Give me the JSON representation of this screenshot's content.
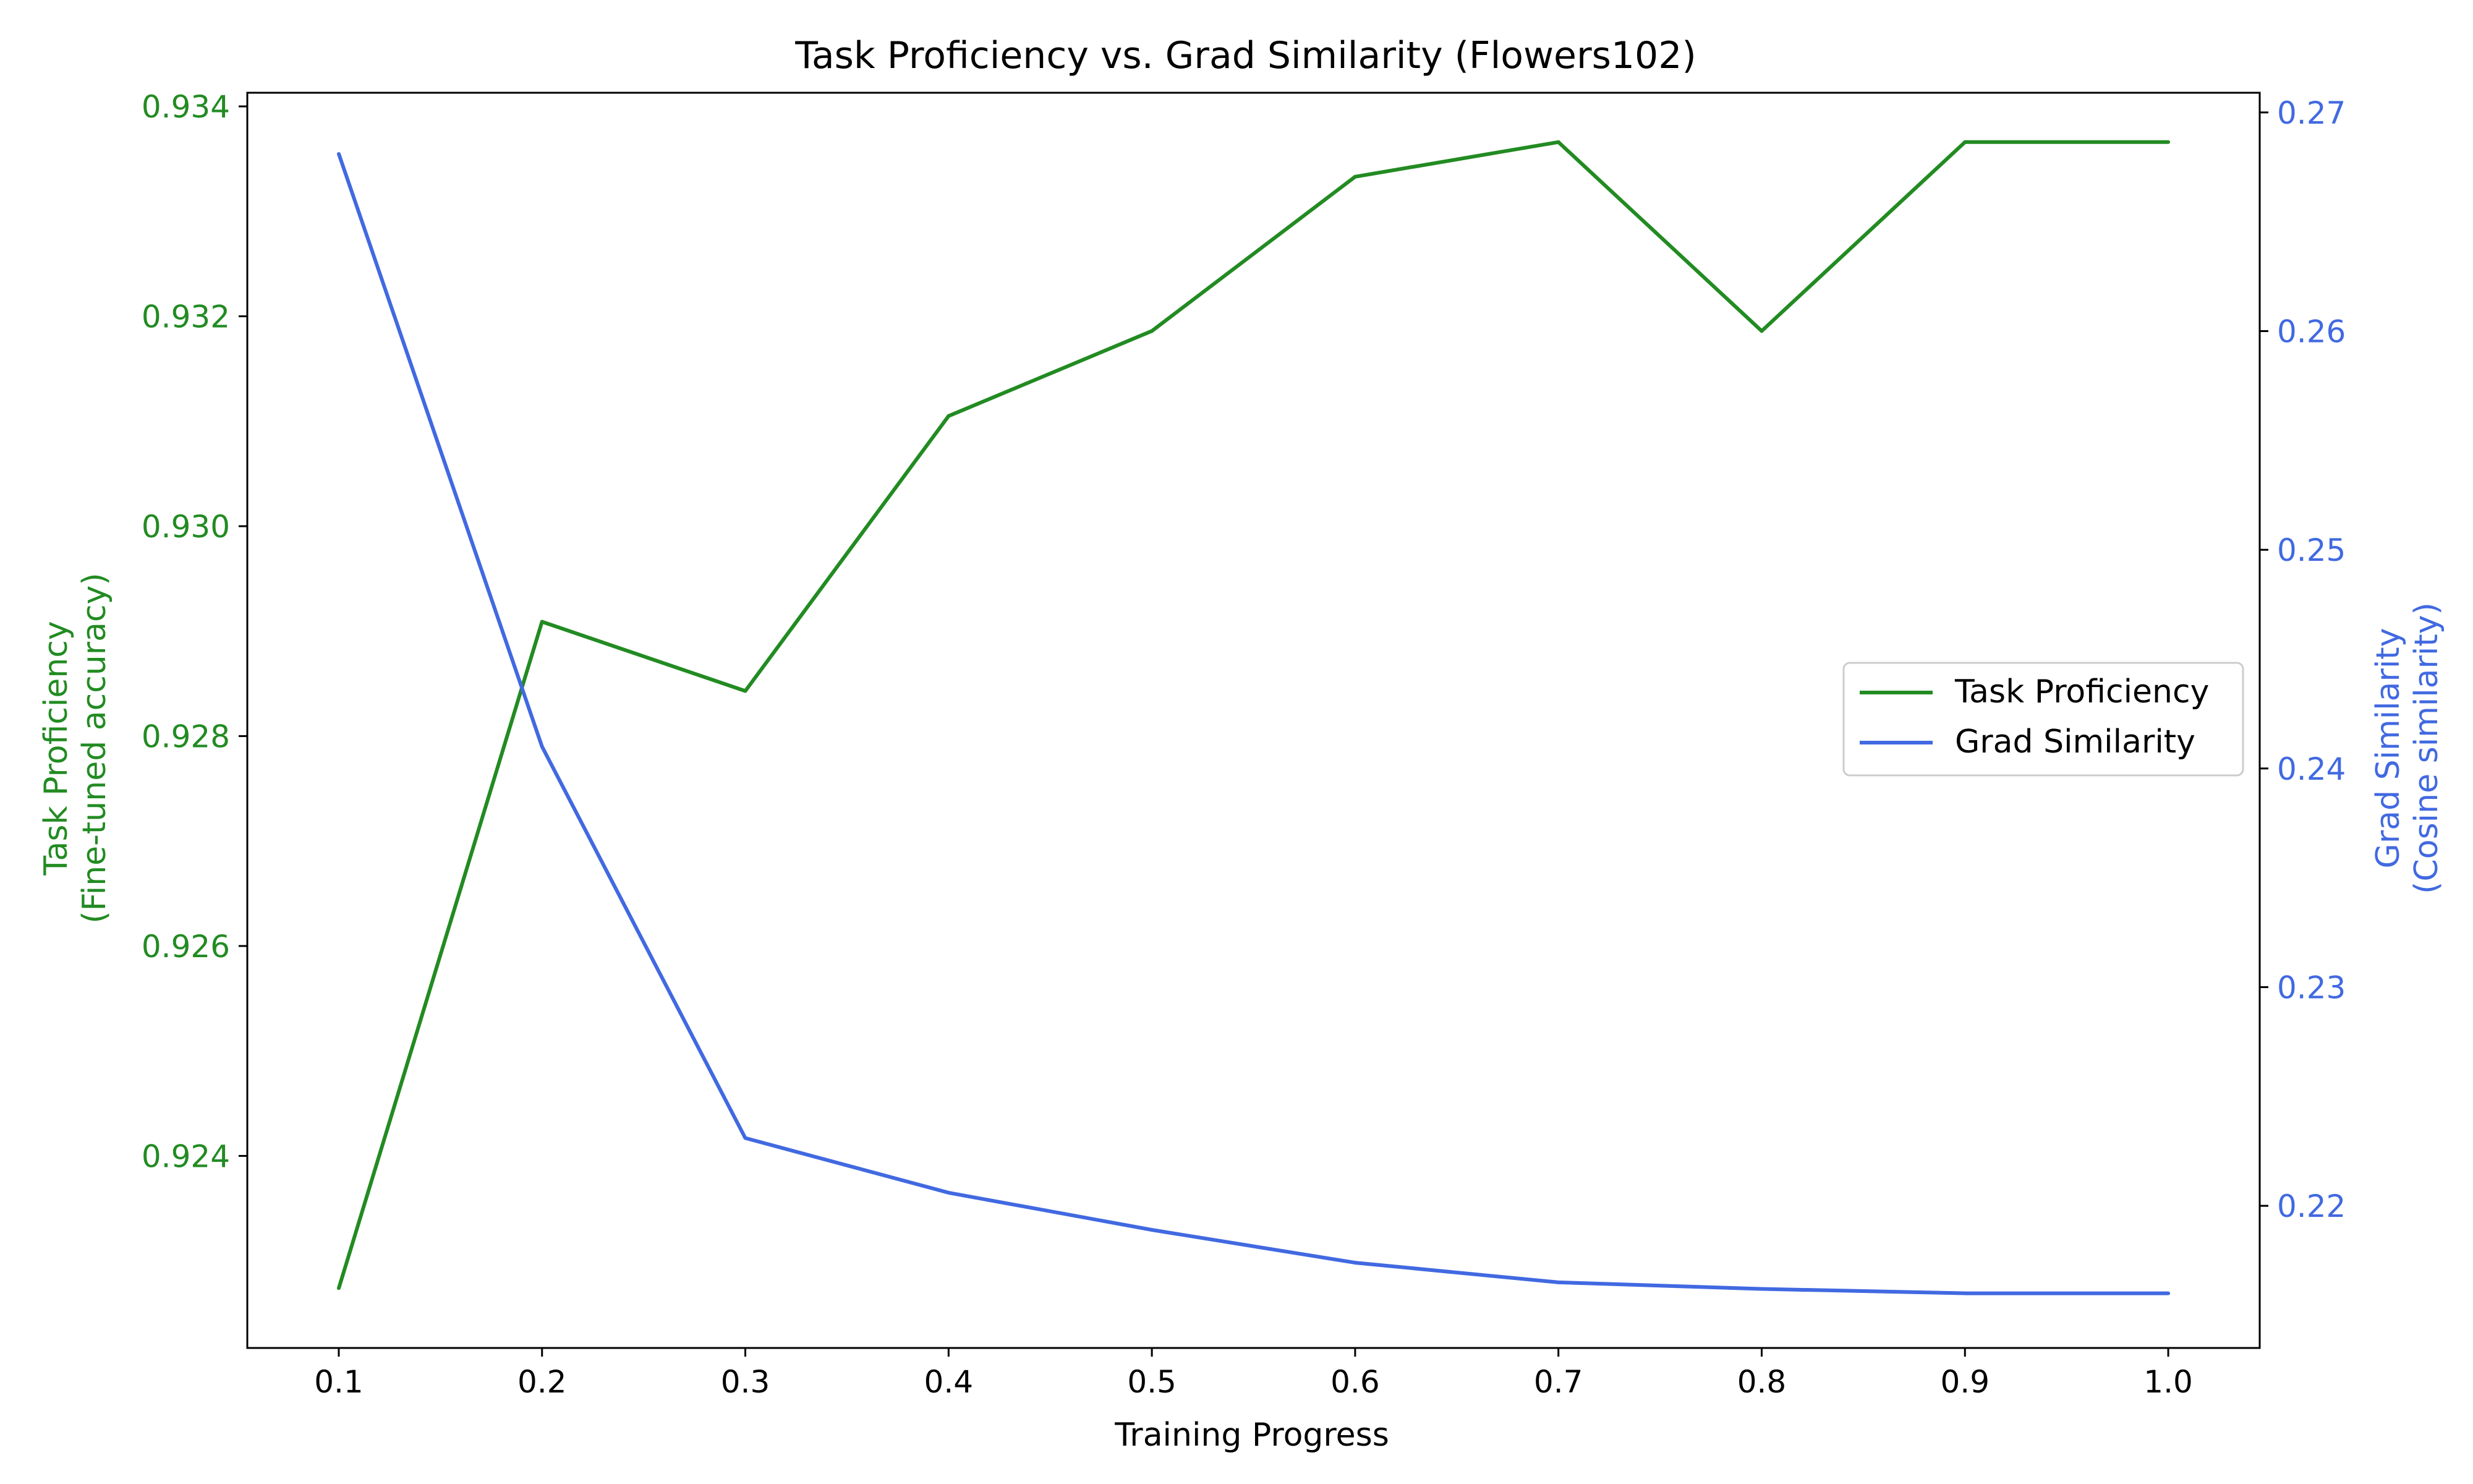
{
  "chart_data": {
    "type": "line",
    "title": "Task Proficiency vs. Grad Similarity (Flowers102)",
    "xlabel": "Training Progress",
    "ylabel_left": [
      "Task Proficiency",
      "(Fine-tuned accuracy)"
    ],
    "ylabel_right": [
      "Grad Similarity",
      "(Cosine similarity)"
    ],
    "x": [
      0.1,
      0.2,
      0.3,
      0.4,
      0.5,
      0.6,
      0.7,
      0.8,
      0.9,
      1.0
    ],
    "xlim": [
      0.055,
      1.045
    ],
    "xticks": [
      "0.1",
      "0.2",
      "0.3",
      "0.4",
      "0.5",
      "0.6",
      "0.7",
      "0.8",
      "0.9",
      "1.0"
    ],
    "xtick_values": [
      0.1,
      0.2,
      0.3,
      0.4,
      0.5,
      0.6,
      0.7,
      0.8,
      0.9,
      1.0
    ],
    "ylim_left": [
      0.92217,
      0.93413
    ],
    "yticks_left": [
      "0.924",
      "0.926",
      "0.928",
      "0.930",
      "0.932",
      "0.934"
    ],
    "ytick_values_left": [
      0.924,
      0.926,
      0.928,
      0.93,
      0.932,
      0.934
    ],
    "ylim_right": [
      0.2135,
      0.2709
    ],
    "yticks_right": [
      "0.22",
      "0.23",
      "0.24",
      "0.25",
      "0.26",
      "0.27"
    ],
    "ytick_values_right": [
      0.22,
      0.23,
      0.24,
      0.25,
      0.26,
      0.27
    ],
    "legend_position": "center-right",
    "grid": false,
    "series": [
      {
        "name": "Task Proficiency",
        "axis": "left",
        "color": "#228B22",
        "values": [
          0.92274,
          0.92909,
          0.92843,
          0.93105,
          0.93186,
          0.93333,
          0.93366,
          0.93186,
          0.93366,
          0.93366
        ]
      },
      {
        "name": "Grad Similarity",
        "axis": "right",
        "color": "#4169E1",
        "values": [
          0.2681,
          0.241,
          0.2231,
          0.2206,
          0.2189,
          0.2174,
          0.2165,
          0.2162,
          0.216,
          0.216
        ]
      }
    ]
  }
}
